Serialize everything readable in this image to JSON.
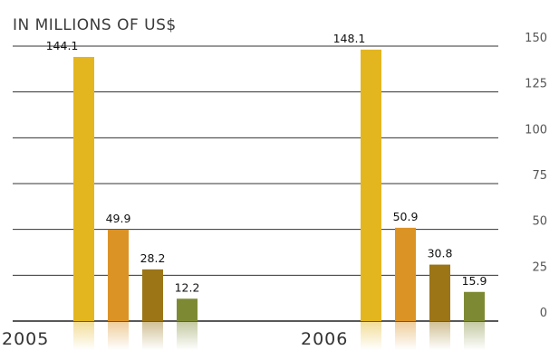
{
  "chart_data": {
    "type": "bar",
    "title": "IN MILLIONS OF US$",
    "categories": [
      "2005",
      "2006"
    ],
    "series": [
      {
        "color": "#E3B61F",
        "values": [
          144.1,
          148.1
        ]
      },
      {
        "color": "#DC9326",
        "values": [
          49.9,
          50.9
        ]
      },
      {
        "color": "#9B7516",
        "values": [
          28.2,
          30.8
        ]
      },
      {
        "color": "#7E8A33",
        "values": [
          12.2,
          15.9
        ]
      }
    ],
    "data_labels": [
      [
        "144.1",
        "49.9",
        "28.2",
        "12.2"
      ],
      [
        "148.1",
        "50.9",
        "30.8",
        "15.9"
      ]
    ],
    "yticks": [
      0,
      25,
      50,
      75,
      100,
      125,
      150
    ],
    "ylim": [
      0,
      150
    ],
    "y_axis_side": "right",
    "grid": true,
    "legend": "none"
  }
}
